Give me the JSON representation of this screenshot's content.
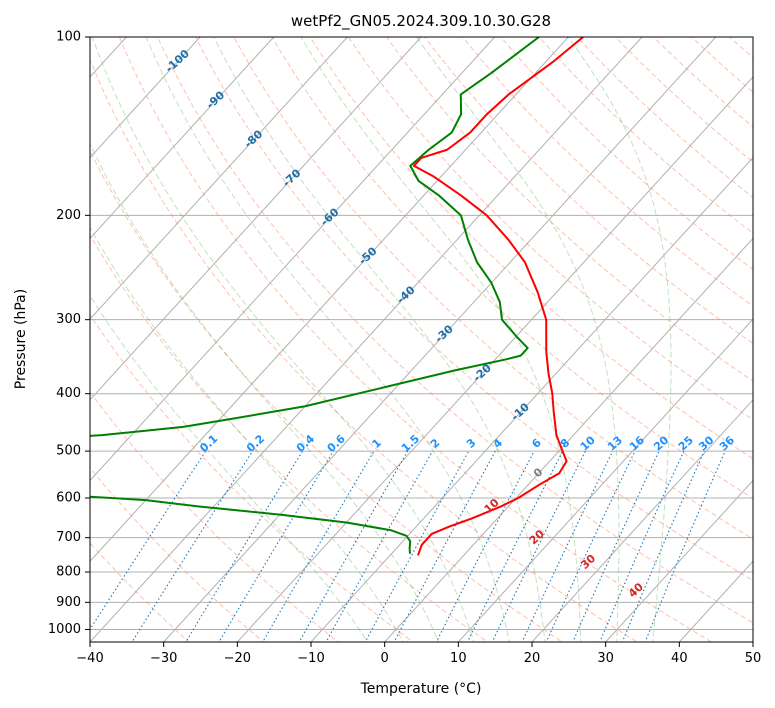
{
  "chart_data": {
    "type": "skew-t",
    "title": "wetPf2_GN05.2024.309.10.30.G28",
    "xlabel": "Temperature (°C)",
    "ylabel": "Pressure (hPa)",
    "xlim": [
      -40,
      50
    ],
    "ylim": [
      1050,
      100
    ],
    "y_scale": "log",
    "grid": true,
    "x_ticks": [
      "−40",
      "−30",
      "−20",
      "−10",
      "0",
      "10",
      "20",
      "30",
      "40",
      "50"
    ],
    "y_ticks": [
      {
        "p": 100,
        "label": "100"
      },
      {
        "p": 200,
        "label": "200"
      },
      {
        "p": 300,
        "label": "300"
      },
      {
        "p": 400,
        "label": "400"
      },
      {
        "p": 500,
        "label": "500"
      },
      {
        "p": 600,
        "label": "600"
      },
      {
        "p": 700,
        "label": "700"
      },
      {
        "p": 800,
        "label": "800"
      },
      {
        "p": 900,
        "label": "900"
      },
      {
        "p": 1000,
        "label": "1000"
      }
    ],
    "series": [
      {
        "id": "temperature",
        "color": "#ff0000",
        "points": [
          [
            750,
            -6.2
          ],
          [
            720,
            -7.0
          ],
          [
            690,
            -7.0
          ],
          [
            670,
            -5.5
          ],
          [
            650,
            -3.5
          ],
          [
            620,
            -1.0
          ],
          [
            600,
            0.3
          ],
          [
            570,
            1.5
          ],
          [
            545,
            2.8
          ],
          [
            520,
            2.3
          ],
          [
            500,
            0.5
          ],
          [
            470,
            -2.3
          ],
          [
            430,
            -5.5
          ],
          [
            400,
            -8.0
          ],
          [
            370,
            -11.0
          ],
          [
            340,
            -14.0
          ],
          [
            300,
            -18.0
          ],
          [
            270,
            -22.5
          ],
          [
            240,
            -28.0
          ],
          [
            220,
            -33.0
          ],
          [
            200,
            -39.0
          ],
          [
            185,
            -45.0
          ],
          [
            172,
            -51.0
          ],
          [
            165,
            -55.0
          ],
          [
            160,
            -55.0
          ],
          [
            155,
            -52.5
          ],
          [
            145,
            -51.5
          ],
          [
            135,
            -51.5
          ],
          [
            125,
            -51.0
          ],
          [
            110,
            -49.0
          ],
          [
            100,
            -48.0
          ]
        ]
      },
      {
        "id": "dewpoint",
        "color": "#008000",
        "points": [
          [
            745,
            -7.5
          ],
          [
            730,
            -8.2
          ],
          [
            710,
            -9.0
          ],
          [
            695,
            -10.2
          ],
          [
            680,
            -13.0
          ],
          [
            660,
            -20.0
          ],
          [
            640,
            -30.0
          ],
          [
            620,
            -42.0
          ],
          [
            605,
            -50.0
          ],
          [
            595,
            -60.0
          ],
          [
            585,
            -75.0
          ],
          [
            578,
            -90.0
          ],
          [
            null,
            null
          ],
          [
            480,
            -75.0
          ],
          [
            470,
            -64.0
          ],
          [
            455,
            -54.0
          ],
          [
            440,
            -48.0
          ],
          [
            420,
            -40.0
          ],
          [
            395,
            -33.0
          ],
          [
            365,
            -24.0
          ],
          [
            350,
            -18.5
          ],
          [
            345,
            -17.0
          ],
          [
            335,
            -17.0
          ],
          [
            320,
            -20.0
          ],
          [
            300,
            -24.0
          ],
          [
            280,
            -26.5
          ],
          [
            260,
            -30.0
          ],
          [
            240,
            -34.5
          ],
          [
            220,
            -38.5
          ],
          [
            200,
            -42.5
          ],
          [
            185,
            -48.0
          ],
          [
            175,
            -52.5
          ],
          [
            165,
            -55.5
          ],
          [
            155,
            -55.0
          ],
          [
            145,
            -54.0
          ],
          [
            135,
            -55.0
          ],
          [
            125,
            -57.5
          ],
          [
            115,
            -56.0
          ],
          [
            100,
            -54.0
          ]
        ]
      }
    ],
    "isotherm_grid_temperatures": [
      -120,
      -110,
      -100,
      -90,
      -80,
      -70,
      -60,
      -50,
      -40,
      -30,
      -20,
      -10,
      0,
      10,
      20,
      30,
      40,
      50
    ],
    "dry_adiabats_theta_c": [
      -30,
      -20,
      -10,
      0,
      10,
      20,
      30,
      40,
      50,
      60,
      70,
      80,
      90,
      100,
      110,
      120,
      130,
      140,
      150,
      160,
      170,
      180,
      190,
      200,
      210
    ],
    "moist_adiabats_theta_w_c": [
      -5,
      0,
      5,
      10,
      15,
      20,
      25,
      30,
      35
    ],
    "mixing_ratios": [
      0.1,
      0.2,
      0.4,
      0.6,
      1,
      1.5,
      2,
      3,
      4,
      6,
      8,
      10,
      13,
      16,
      20,
      25,
      30,
      36
    ],
    "mixing_ratio_labels": [
      "0.1",
      "0.2",
      "0.4",
      "0.6",
      "1",
      "1.5",
      "2",
      "3",
      "4",
      "6",
      "8",
      "10",
      "13",
      "16",
      "20",
      "25",
      "30",
      "36"
    ],
    "blue_isotherm_labels": [
      {
        "label": "-100",
        "t": -100
      },
      {
        "label": "-90",
        "t": -90
      },
      {
        "label": "-80",
        "t": -80
      },
      {
        "label": "-70",
        "t": -70
      },
      {
        "label": "-60",
        "t": -60
      },
      {
        "label": "-50",
        "t": -50
      },
      {
        "label": "-40",
        "t": -40
      },
      {
        "label": "-30",
        "t": -30
      },
      {
        "label": "-20",
        "t": -20
      },
      {
        "label": "-10",
        "t": -10
      }
    ],
    "zero_label": {
      "label": "0",
      "t": 0
    },
    "red_isotherm_labels": [
      {
        "label": "10",
        "t": 10
      },
      {
        "label": "20",
        "t": 20
      },
      {
        "label": "30",
        "t": 30
      },
      {
        "label": "40",
        "t": 40
      }
    ],
    "colors": {
      "temperature": "#ff0000",
      "dewpoint": "#008000",
      "grid": "#b0b0b0",
      "dry_adiabat": "#ff8c69",
      "moist_adiabat": "#2ca02c",
      "mixing_ratio": "#1f77b4",
      "mixing_label": "#1e90ff",
      "isotherm_label_cold": "#1f6fa8",
      "isotherm_label_warm": "#d62728",
      "zero_label": "#808080"
    }
  }
}
